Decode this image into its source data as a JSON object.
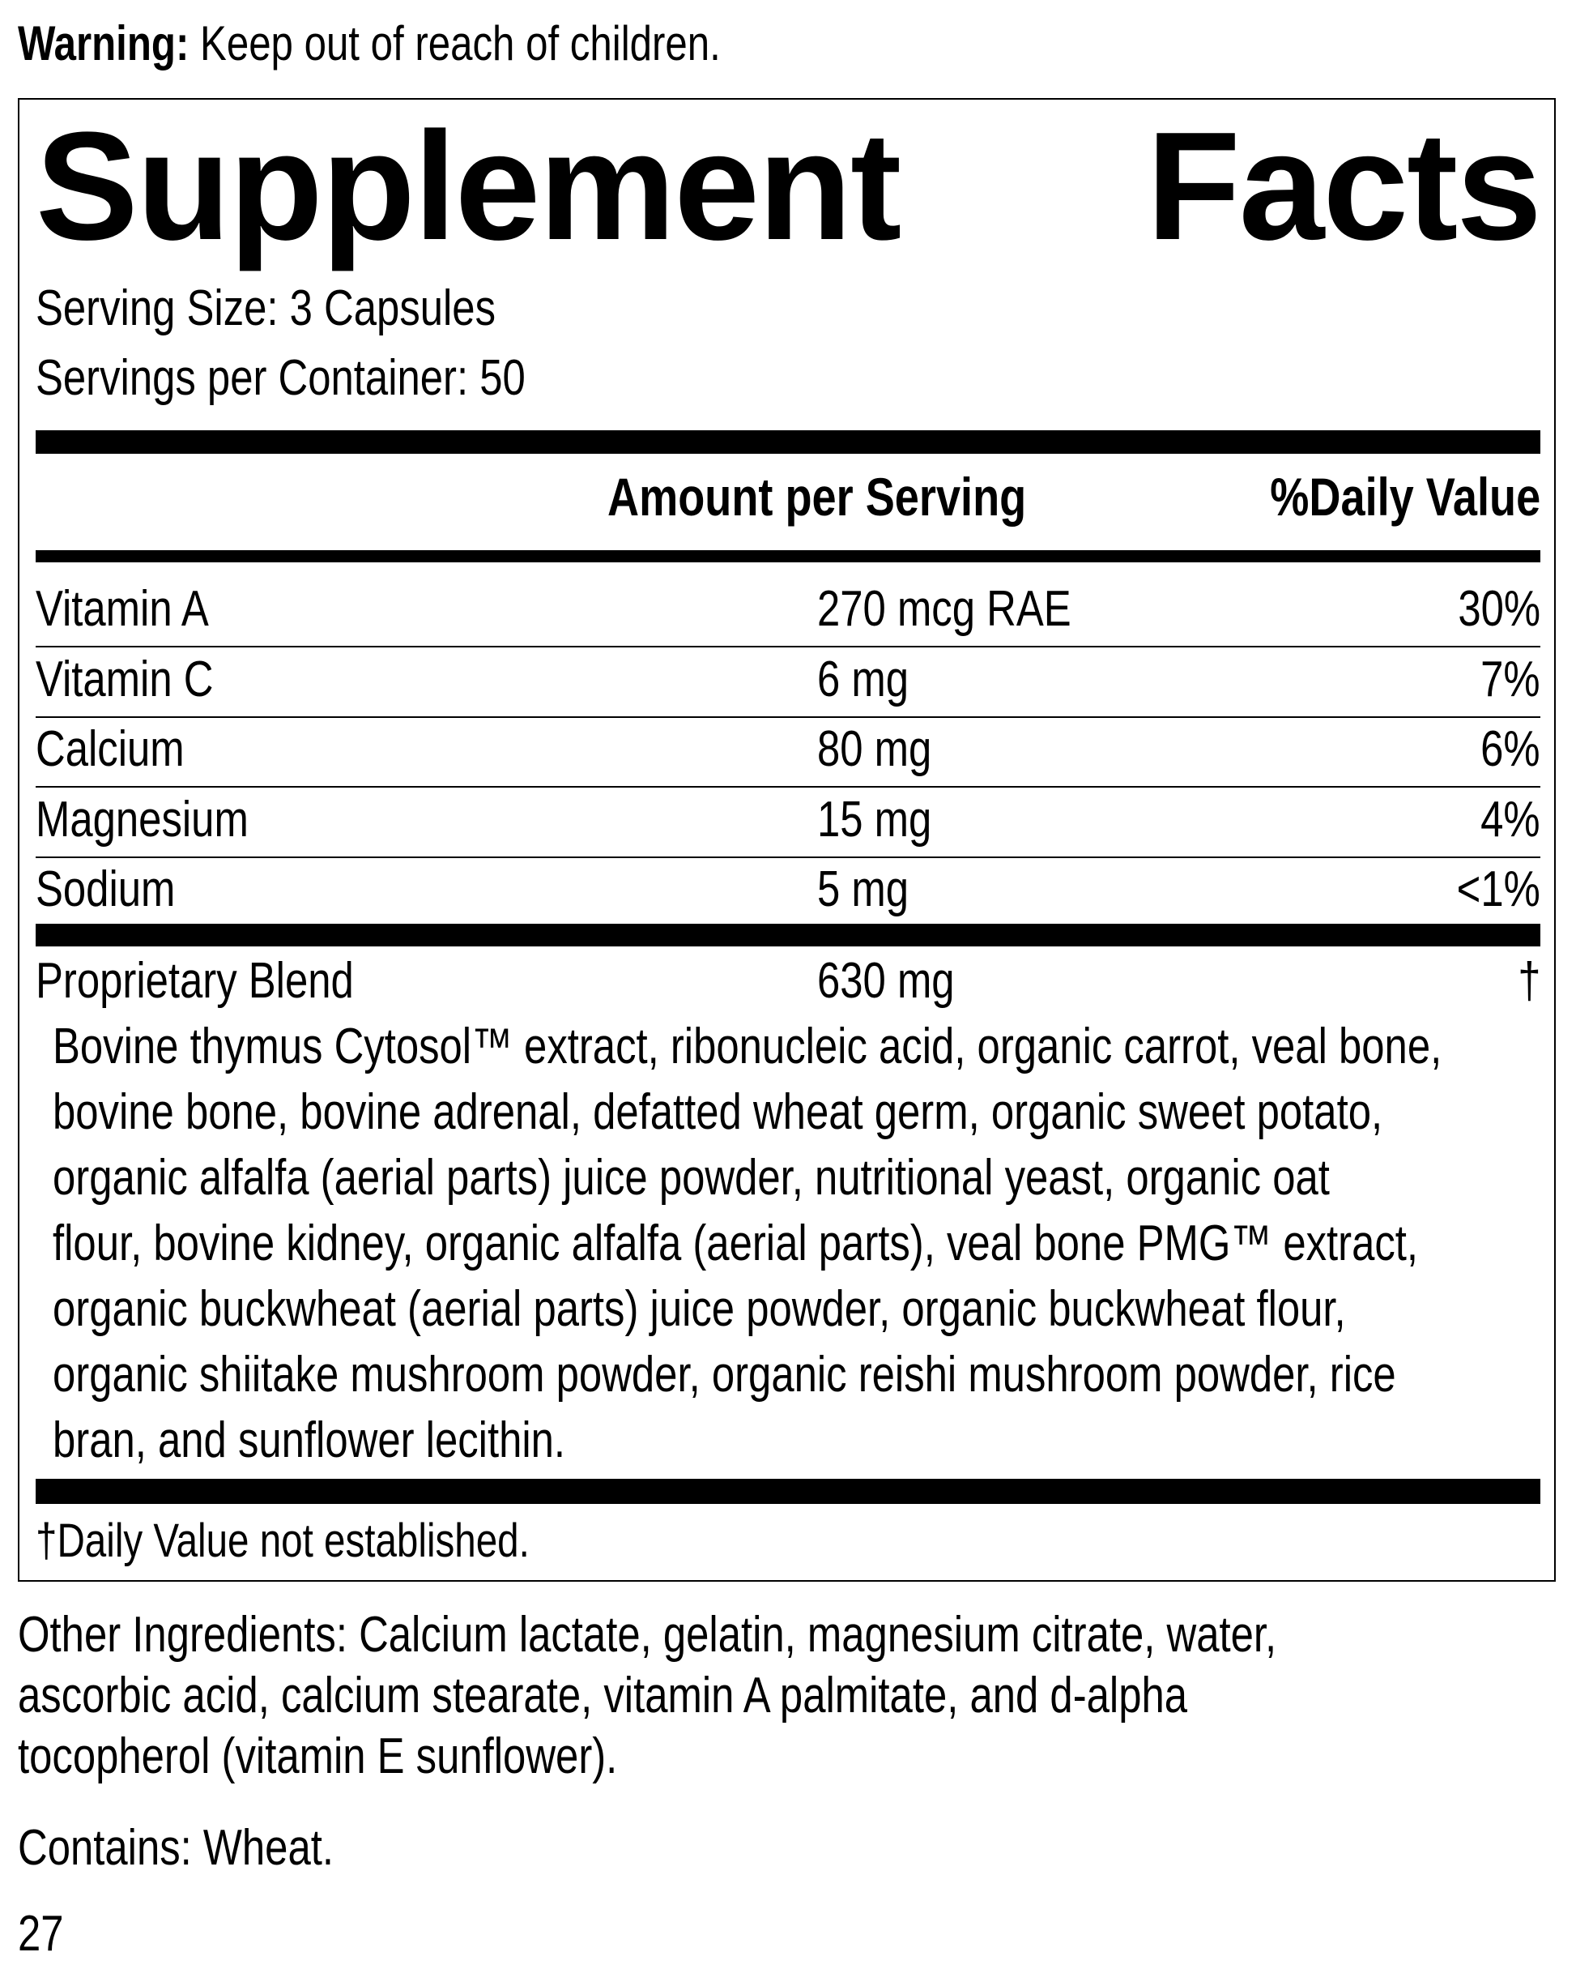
{
  "warning": {
    "label": "Warning:",
    "text": "Keep out of reach of children."
  },
  "facts": {
    "title": "Supplement Facts",
    "serving_size": "Serving Size: 3 Capsules",
    "servings_per_container": "Servings per Container: 50",
    "headers": [
      "Amount per Serving",
      "%Daily Value"
    ],
    "rows": [
      [
        "Vitamin A",
        "270 mcg RAE",
        "30%"
      ],
      [
        "Vitamin C",
        "6 mg",
        "7%"
      ],
      [
        "Calcium",
        "80 mg",
        "6%"
      ],
      [
        "Magnesium",
        "15 mg",
        "4%"
      ],
      [
        "Sodium",
        "5 mg",
        "<1%"
      ]
    ],
    "blend": [
      "Proprietary Blend",
      "630 mg",
      "†"
    ],
    "blend_ingredients": [
      "Bovine thymus Cytosol™ extract, ribonucleic acid, organic carrot, veal bone,",
      "bovine bone, bovine adrenal, defatted wheat germ, organic sweet potato,",
      "organic alfalfa (aerial parts) juice powder, nutritional yeast, organic oat",
      "flour, bovine kidney, organic alfalfa (aerial parts), veal bone PMG™ extract,",
      "organic buckwheat (aerial parts) juice powder, organic buckwheat flour,",
      "organic shiitake mushroom powder, organic reishi mushroom powder, rice",
      "bran, and sunflower lecithin."
    ],
    "footnote": "†Daily Value not established."
  },
  "other_ingredients": [
    "Other Ingredients: Calcium lactate, gelatin, magnesium citrate, water,",
    "ascorbic acid, calcium stearate, vitamin A palmitate, and d-alpha",
    "tocopherol (vitamin E sunflower)."
  ],
  "contains": "Contains: Wheat.",
  "page_number": "27"
}
